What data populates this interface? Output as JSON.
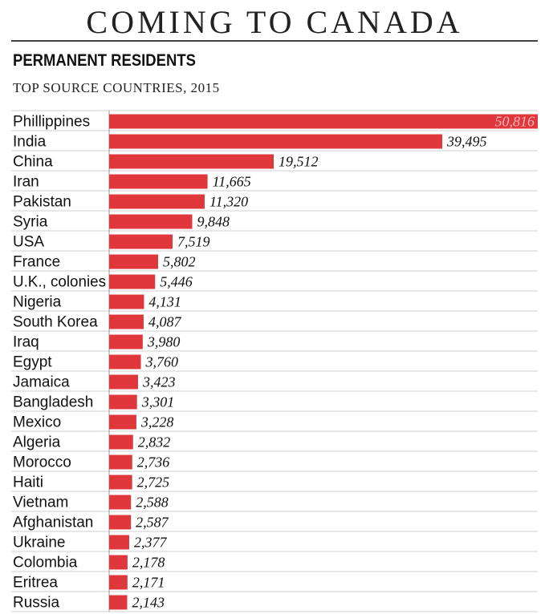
{
  "header": {
    "title": "COMING TO CANADA",
    "subtitle": "PERMANENT RESIDENTS",
    "subsubtitle": "TOP SOURCE COUNTRIES, 2015"
  },
  "chart_data": {
    "type": "bar",
    "orientation": "horizontal",
    "title": "PERMANENT RESIDENTS",
    "subtitle": "TOP SOURCE COUNTRIES, 2015",
    "categories": [
      "Phillippines",
      "India",
      "China",
      "Iran",
      "Pakistan",
      "Syria",
      "USA",
      "France",
      "U.K., colonies",
      "Nigeria",
      "South Korea",
      "Iraq",
      "Egypt",
      "Jamaica",
      "Bangladesh",
      "Mexico",
      "Algeria",
      "Morocco",
      "Haiti",
      "Vietnam",
      "Afghanistan",
      "Ukraine",
      "Colombia",
      "Eritrea",
      "Russia"
    ],
    "values": [
      50816,
      39495,
      19512,
      11665,
      11320,
      9848,
      7519,
      5802,
      5446,
      4131,
      4087,
      3980,
      3760,
      3423,
      3301,
      3228,
      2832,
      2736,
      2725,
      2588,
      2587,
      2377,
      2178,
      2171,
      2143
    ],
    "value_labels": [
      "50,816",
      "39,495",
      "19,512",
      "11,665",
      "11,320",
      "9,848",
      "7,519",
      "5,802",
      "5,446",
      "4,131",
      "4,087",
      "3,980",
      "3,760",
      "3,423",
      "3,301",
      "3,228",
      "2,832",
      "2,736",
      "2,725",
      "2,588",
      "2,587",
      "2,377",
      "2,178",
      "2,171",
      "2,143"
    ],
    "xlim": [
      0,
      50816
    ],
    "grid": true,
    "bar_color": "#e0373d",
    "grid_color": "#cfcfcf"
  }
}
